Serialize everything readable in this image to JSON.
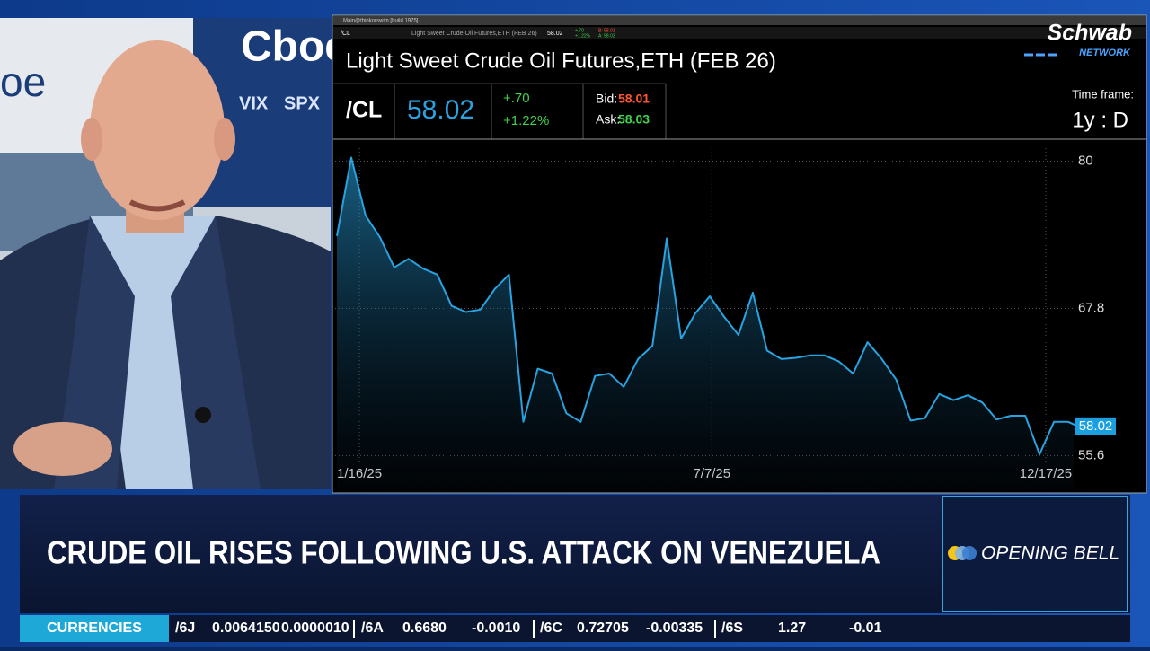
{
  "video": {
    "signs": [
      "oe",
      "Cboe",
      "VIX",
      "SPX"
    ]
  },
  "platform": {
    "window_title": "Main@thinkorswim [build 1975]",
    "toolbar": {
      "symbol": "/CL",
      "description": "Light Sweet Crude Oil Futures,ETH (FEB 26)",
      "last": "58.02",
      "change": "+.70",
      "change_pct": "+1.22%",
      "bid": "B: 58.01",
      "ask": "A: 58.03"
    }
  },
  "quote": {
    "title": "Light Sweet Crude Oil Futures,ETH (FEB 26)",
    "symbol": "/CL",
    "last": "58.02",
    "change": "+.70",
    "change_pct": "+1.22%",
    "bid_label": "Bid:",
    "bid": "58.01",
    "ask_label": "Ask:",
    "ask": "58.03",
    "timeframe_label": "Time frame:",
    "timeframe": "1y : D"
  },
  "logo": {
    "name": "Schwab",
    "sub": "NETWORK"
  },
  "chart_data": {
    "type": "line",
    "color": "#29a3e0",
    "grid": true,
    "x": [
      "2025-01-05",
      "2025-01-12",
      "2025-01-19",
      "2025-01-26",
      "2025-02-02",
      "2025-02-09",
      "2025-02-16",
      "2025-02-23",
      "2025-03-02",
      "2025-03-09",
      "2025-03-16",
      "2025-03-23",
      "2025-03-30",
      "2025-04-06",
      "2025-04-13",
      "2025-04-20",
      "2025-04-27",
      "2025-05-04",
      "2025-05-11",
      "2025-05-18",
      "2025-05-25",
      "2025-06-01",
      "2025-06-08",
      "2025-06-15",
      "2025-06-22",
      "2025-06-29",
      "2025-07-06",
      "2025-07-13",
      "2025-07-20",
      "2025-07-27",
      "2025-08-03",
      "2025-08-10",
      "2025-08-17",
      "2025-08-24",
      "2025-08-31",
      "2025-09-07",
      "2025-09-14",
      "2025-09-21",
      "2025-09-28",
      "2025-10-05",
      "2025-10-12",
      "2025-10-19",
      "2025-10-26",
      "2025-11-02",
      "2025-11-09",
      "2025-11-16",
      "2025-11-23",
      "2025-11-30",
      "2025-12-07",
      "2025-12-14",
      "2025-12-21",
      "2025-12-28",
      "2026-01-02"
    ],
    "values": [
      73.8,
      80.3,
      75.5,
      73.7,
      71.2,
      71.9,
      71.1,
      70.6,
      68.0,
      67.5,
      67.7,
      69.4,
      70.6,
      58.4,
      62.8,
      62.4,
      59.1,
      58.4,
      62.2,
      62.4,
      61.3,
      63.6,
      64.7,
      73.6,
      65.3,
      67.4,
      68.8,
      67.1,
      65.6,
      69.1,
      64.3,
      63.6,
      63.7,
      63.9,
      63.9,
      63.4,
      62.4,
      65.0,
      63.6,
      61.9,
      58.5,
      58.7,
      60.7,
      60.2,
      60.6,
      60.0,
      58.6,
      58.9,
      58.9,
      55.7,
      58.4,
      58.4,
      58.02
    ],
    "xlim": [
      "2025-01-05",
      "2026-01-04"
    ],
    "xticks": [
      {
        "value": "2025-01-16",
        "label": "1/16/25"
      },
      {
        "value": "2025-07-07",
        "label": "7/7/25"
      },
      {
        "value": "2025-12-17",
        "label": "12/17/25"
      }
    ],
    "ylim": [
      52.8,
      81.6
    ],
    "yticks": [
      80,
      67.8,
      55.6
    ]
  },
  "banner": {
    "headline": "CRUDE OIL RISES FOLLOWING U.S. ATTACK ON VENEZUELA",
    "show": "OPENING BELL"
  },
  "ticker": {
    "label": "CURRENCIES",
    "items": [
      {
        "symbol": "/6J",
        "price": "0.0064150",
        "change": "0.0000010",
        "color": "#3fd24a"
      },
      {
        "symbol": "/6A",
        "price": "0.6680",
        "change": "-0.0010",
        "color": "#ff3b30"
      },
      {
        "symbol": "/6C",
        "price": "0.72705",
        "change": "-0.00335",
        "color": "#ff3b30"
      },
      {
        "symbol": "/6S",
        "price": "1.27",
        "change": "-0.01",
        "color": "#ff3b30"
      }
    ]
  }
}
